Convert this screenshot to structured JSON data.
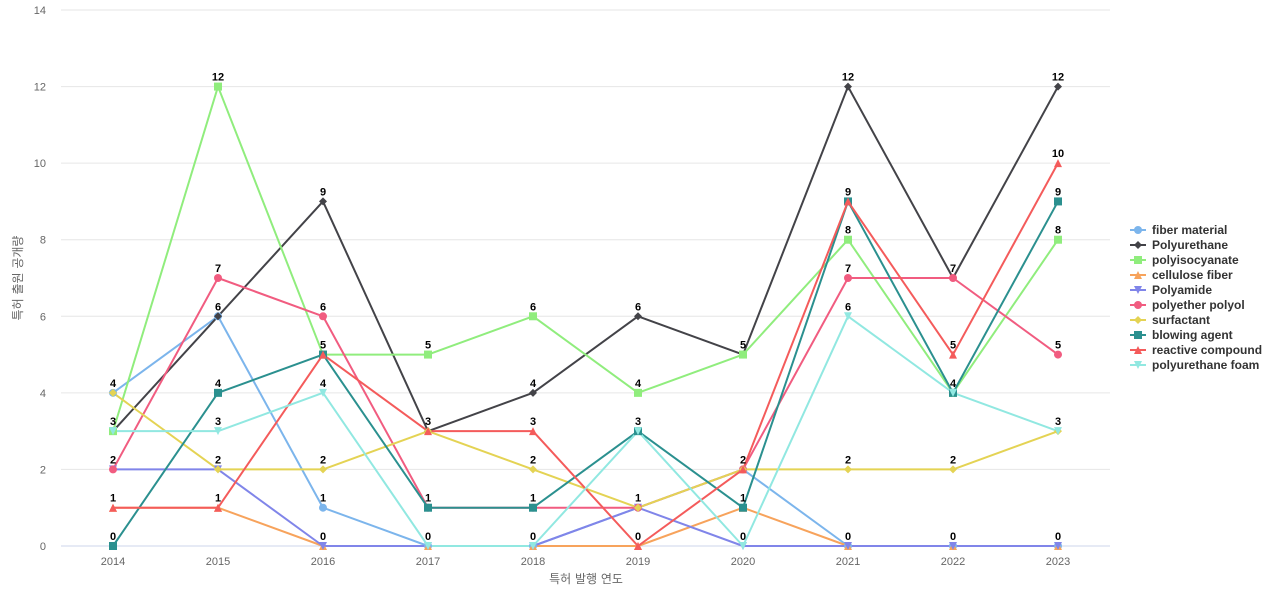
{
  "chart_data": {
    "type": "line",
    "xlabel": "특허 발행 연도",
    "ylabel": "특허 출원 공개량",
    "ylim": [
      0,
      14
    ],
    "yticks": [
      0,
      2,
      4,
      6,
      8,
      10,
      12,
      14
    ],
    "grid": true,
    "legend_position": "right",
    "x": [
      "2014",
      "2015",
      "2016",
      "2017",
      "2018",
      "2019",
      "2020",
      "2021",
      "2022",
      "2023"
    ],
    "series": [
      {
        "name": "fiber material",
        "color": "#7cb5ec",
        "marker": "circle",
        "values": [
          4,
          6,
          1,
          0,
          0,
          1,
          2,
          0,
          0,
          0
        ]
      },
      {
        "name": "Polyurethane",
        "color": "#434348",
        "marker": "diamond",
        "values": [
          3,
          6,
          9,
          3,
          4,
          6,
          5,
          12,
          7,
          12
        ]
      },
      {
        "name": "polyisocyanate",
        "color": "#90ed7d",
        "marker": "square",
        "values": [
          3,
          12,
          5,
          5,
          6,
          4,
          5,
          8,
          4,
          8
        ]
      },
      {
        "name": "cellulose fiber",
        "color": "#f7a35c",
        "marker": "triangle",
        "values": [
          1,
          1,
          0,
          0,
          0,
          0,
          1,
          0,
          0,
          0
        ]
      },
      {
        "name": "Polyamide",
        "color": "#8085e9",
        "marker": "triangle-down",
        "values": [
          2,
          2,
          0,
          0,
          0,
          1,
          0,
          0,
          0,
          0
        ]
      },
      {
        "name": "polyether polyol",
        "color": "#f15c80",
        "marker": "circle",
        "values": [
          2,
          7,
          6,
          1,
          1,
          1,
          2,
          7,
          7,
          5
        ]
      },
      {
        "name": "surfactant",
        "color": "#e4d354",
        "marker": "diamond",
        "values": [
          4,
          2,
          2,
          3,
          2,
          1,
          2,
          2,
          2,
          3
        ]
      },
      {
        "name": "blowing agent",
        "color": "#2b908f",
        "marker": "square",
        "values": [
          0,
          4,
          5,
          1,
          1,
          3,
          1,
          9,
          4,
          9
        ]
      },
      {
        "name": "reactive compound",
        "color": "#f45b5b",
        "marker": "triangle",
        "values": [
          1,
          1,
          5,
          3,
          3,
          0,
          2,
          9,
          5,
          10
        ]
      },
      {
        "name": "polyurethane foam",
        "color": "#91e8e1",
        "marker": "triangle-down",
        "values": [
          3,
          3,
          4,
          0,
          0,
          3,
          0,
          6,
          4,
          3
        ]
      }
    ],
    "data_labels": [
      [
        "4",
        "12",
        "9",
        "5",
        "6",
        "6",
        "5",
        "12",
        "7",
        "12"
      ],
      [
        "3",
        "7",
        "6",
        "3",
        "4",
        "4",
        "2",
        "9",
        "5",
        "10"
      ],
      [
        "2",
        "6",
        "5",
        "1",
        "3",
        "3",
        "1",
        "8",
        "4",
        "9"
      ],
      [
        "1",
        "4",
        "4",
        "0",
        "2",
        "1",
        "0",
        "7",
        "2",
        "8"
      ],
      [
        "0",
        "3",
        "2",
        "",
        "1",
        "0",
        "",
        "6",
        "0",
        "5"
      ],
      [
        "",
        "2",
        "1",
        "",
        "0",
        "",
        "",
        "2",
        "",
        "3"
      ],
      [
        "",
        "1",
        "0",
        "",
        "",
        "",
        "",
        "0",
        "",
        "0"
      ]
    ]
  }
}
